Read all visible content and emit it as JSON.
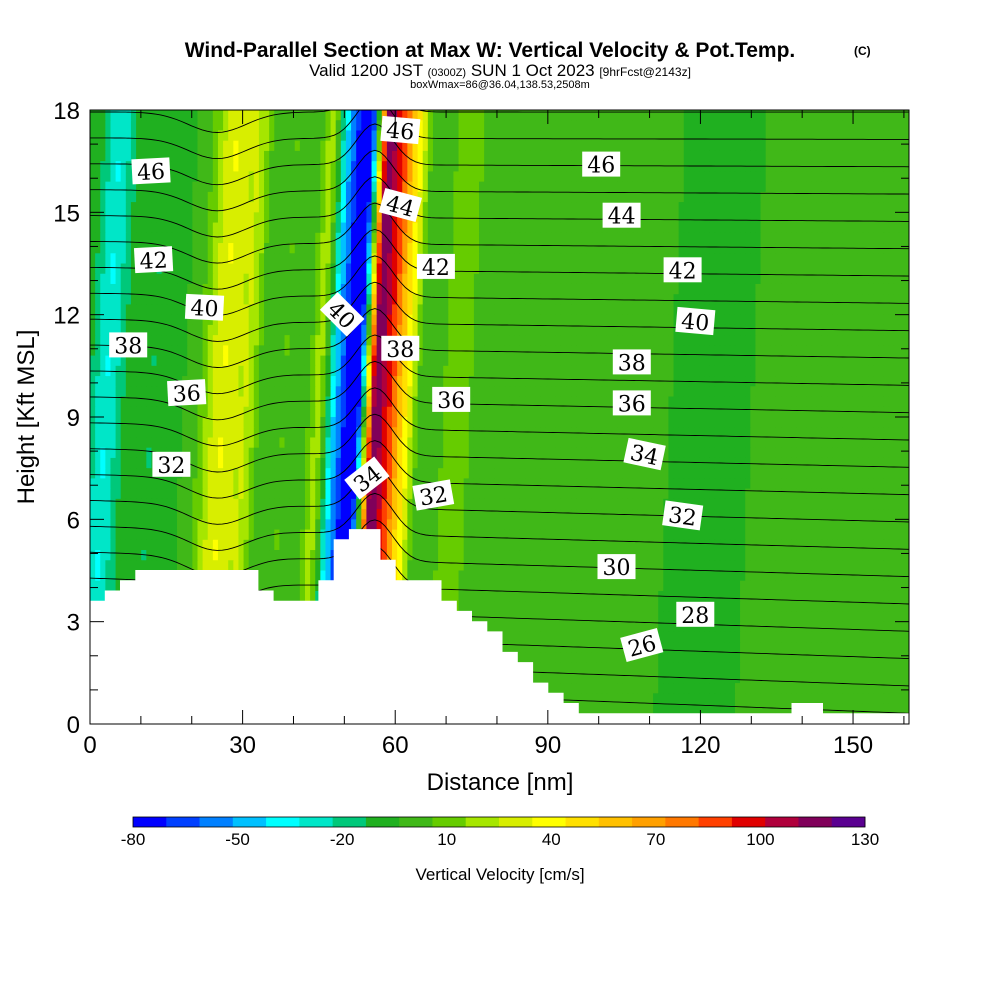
{
  "header": {
    "title": "Wind-Parallel Section at Max W: Vertical Velocity & Pot.Temp.",
    "copyright": "(C)",
    "valid_prefix": "Valid 1200 JST",
    "valid_zulu": "(0300Z)",
    "valid_date": "SUN 1 Oct 2023",
    "forecast": "[9hrFcst@2143z]",
    "boxinfo": "boxWmax=86@36.04,138.53,2508m"
  },
  "chart_data": {
    "type": "heatmap",
    "xlabel": "Distance [nm]",
    "ylabel": "Height [Kft MSL]",
    "xlim": [
      0,
      161
    ],
    "ylim": [
      0,
      18
    ],
    "x_ticks": [
      0,
      30,
      60,
      90,
      120,
      150
    ],
    "y_ticks": [
      0,
      3,
      6,
      9,
      12,
      15,
      18
    ],
    "colorbar": {
      "label": "Vertical Velocity [cm/s]",
      "tick_labels": [
        "-80",
        "-50",
        "-20",
        "10",
        "40",
        "70",
        "100",
        "130"
      ],
      "levels": [
        -80,
        -70,
        -60,
        -50,
        -40,
        -30,
        -20,
        -10,
        0,
        10,
        20,
        30,
        40,
        50,
        60,
        70,
        80,
        90,
        100,
        110,
        120,
        130
      ],
      "colors": [
        "#0000ff",
        "#0040ff",
        "#0080ff",
        "#00c0ff",
        "#00ffff",
        "#00e6c8",
        "#00c87a",
        "#20b020",
        "#40b818",
        "#66cc00",
        "#a6e600",
        "#d8ee00",
        "#ffff00",
        "#ffe000",
        "#ffc000",
        "#ffa000",
        "#ff7800",
        "#ff4000",
        "#e00000",
        "#b0003c",
        "#80005a",
        "#5a0090"
      ]
    },
    "background_color": "#3cb81c",
    "terrain_color": "#ffffff",
    "vertical_velocity_features": [
      {
        "x_center": 3,
        "half_width": 3,
        "value": -30
      },
      {
        "x_center": 12,
        "half_width": 4,
        "value": -10
      },
      {
        "x_center": 26,
        "half_width": 4,
        "value": 40
      },
      {
        "x_center": 31,
        "half_width": 2,
        "value": 20
      },
      {
        "x_center": 38,
        "half_width": 3,
        "value": 10
      },
      {
        "x_center": 45,
        "half_width": 2,
        "value": 30
      },
      {
        "x_center": 49,
        "half_width": 3,
        "value": -50
      },
      {
        "x_center": 52,
        "half_width": 2,
        "value": -75
      },
      {
        "x_center": 56,
        "half_width": 2,
        "value": 120
      },
      {
        "x_center": 59,
        "half_width": 2,
        "value": 80
      },
      {
        "x_center": 62,
        "half_width": 2,
        "value": 40
      },
      {
        "x_center": 72,
        "half_width": 4,
        "value": 15
      },
      {
        "x_center": 105,
        "half_width": 6,
        "value": 10
      },
      {
        "x_center": 120,
        "half_width": 4,
        "value": -10
      },
      {
        "x_center": 145,
        "half_width": 6,
        "value": 10
      }
    ],
    "potential_temperature_labels": [
      {
        "text": "46",
        "x": 12,
        "y": 16.2,
        "angle": -3
      },
      {
        "text": "42",
        "x": 12.5,
        "y": 13.6,
        "angle": -3
      },
      {
        "text": "40",
        "x": 22.5,
        "y": 12.2,
        "angle": 3
      },
      {
        "text": "38",
        "x": 7.5,
        "y": 11.1,
        "angle": 0
      },
      {
        "text": "36",
        "x": 19,
        "y": 9.7,
        "angle": -3
      },
      {
        "text": "32",
        "x": 16,
        "y": 7.6,
        "angle": 0
      },
      {
        "text": "46",
        "x": 61,
        "y": 17.4,
        "angle": 5
      },
      {
        "text": "44",
        "x": 61,
        "y": 15.2,
        "angle": 15
      },
      {
        "text": "42",
        "x": 68,
        "y": 13.4,
        "angle": 0
      },
      {
        "text": "40",
        "x": 49.5,
        "y": 12.0,
        "angle": 45
      },
      {
        "text": "38",
        "x": 61,
        "y": 11.0,
        "angle": 0
      },
      {
        "text": "36",
        "x": 71,
        "y": 9.5,
        "angle": 0
      },
      {
        "text": "34",
        "x": 54.5,
        "y": 7.2,
        "angle": -38
      },
      {
        "text": "32",
        "x": 67.5,
        "y": 6.7,
        "angle": -10
      },
      {
        "text": "46",
        "x": 100.5,
        "y": 16.4,
        "angle": 0
      },
      {
        "text": "44",
        "x": 104.5,
        "y": 14.9,
        "angle": 0
      },
      {
        "text": "42",
        "x": 116.5,
        "y": 13.3,
        "angle": 0
      },
      {
        "text": "40",
        "x": 119,
        "y": 11.8,
        "angle": 5
      },
      {
        "text": "38",
        "x": 106.5,
        "y": 10.6,
        "angle": 0
      },
      {
        "text": "36",
        "x": 106.5,
        "y": 9.4,
        "angle": 0
      },
      {
        "text": "34",
        "x": 109,
        "y": 7.9,
        "angle": 12
      },
      {
        "text": "32",
        "x": 116.5,
        "y": 6.1,
        "angle": 8
      },
      {
        "text": "30",
        "x": 103.5,
        "y": 4.6,
        "angle": 0
      },
      {
        "text": "28",
        "x": 119,
        "y": 3.2,
        "angle": 0
      },
      {
        "text": "26",
        "x": 108.5,
        "y": 2.3,
        "angle": -15
      }
    ],
    "theta_contour_levels": [
      25,
      26,
      27,
      28,
      29,
      30,
      31,
      32,
      33,
      34,
      35,
      36,
      37,
      38,
      39,
      40,
      41,
      42,
      43,
      44,
      45,
      46,
      47,
      48
    ],
    "terrain_profile": {
      "x": [
        0,
        3,
        6,
        9,
        12,
        30,
        33,
        36,
        42,
        45,
        48,
        51,
        54,
        57,
        60,
        66,
        69,
        72,
        75,
        78,
        81,
        84,
        87,
        90,
        93,
        96,
        135,
        138,
        141,
        144,
        161
      ],
      "height": [
        3.6,
        3.9,
        4.2,
        4.5,
        4.5,
        4.5,
        3.9,
        3.6,
        3.6,
        4.2,
        5.4,
        5.7,
        5.7,
        4.8,
        4.2,
        4.2,
        3.6,
        3.3,
        3.0,
        2.7,
        2.1,
        1.8,
        1.2,
        0.9,
        0.6,
        0.3,
        0.3,
        0.6,
        0.6,
        0.3,
        0.3
      ]
    }
  }
}
